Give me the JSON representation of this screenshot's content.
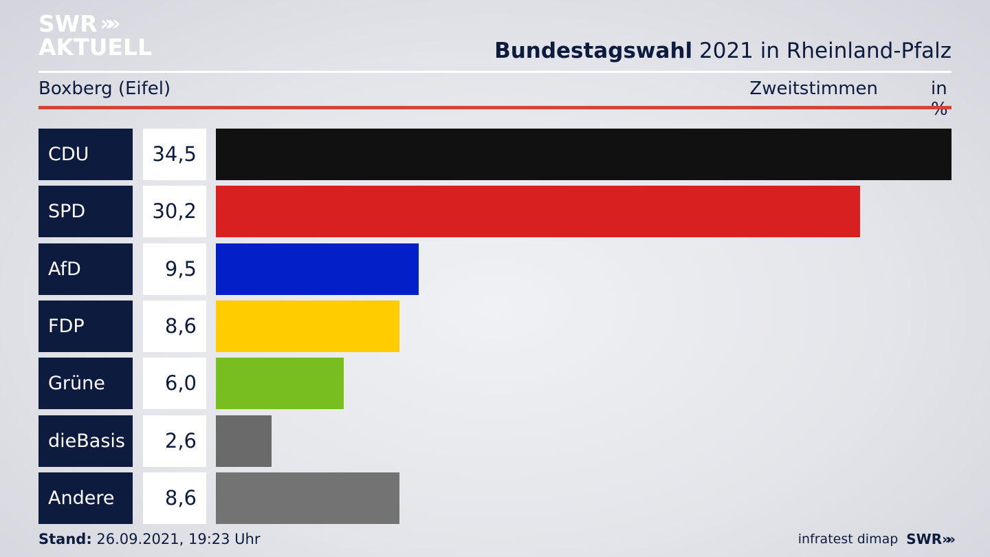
{
  "logo": {
    "line1": "SWR",
    "line1_chevrons": "»»",
    "line2": "AKTUELL"
  },
  "header": {
    "title_bold": "Bundestagswahl",
    "title_rest": " 2021 in Rheinland-Pfalz",
    "subtitle": "Boxberg (Eifel)",
    "metric": "Zweitstimmen",
    "unit": "in %"
  },
  "chart_data": {
    "type": "bar",
    "orientation": "horizontal",
    "categories": [
      "CDU",
      "SPD",
      "AfD",
      "FDP",
      "Grüne",
      "dieBasis",
      "Andere"
    ],
    "values": [
      34.5,
      30.2,
      9.5,
      8.6,
      6.0,
      2.6,
      8.6
    ],
    "value_labels": [
      "34,5",
      "30,2",
      "9,5",
      "8,6",
      "6,0",
      "2,6",
      "8,6"
    ],
    "colors": [
      "#111111",
      "#d92020",
      "#0320c8",
      "#ffcc00",
      "#78be1e",
      "#6a6a6a",
      "#737373"
    ],
    "xlim": [
      0,
      34.5
    ],
    "grid": false,
    "legend": "none"
  },
  "footer": {
    "stand_label": "Stand:",
    "stand_value": " 26.09.2021, 19:23 Uhr",
    "source": "infratest dimap",
    "brand": "SWR",
    "brand_chevrons": "»"
  }
}
